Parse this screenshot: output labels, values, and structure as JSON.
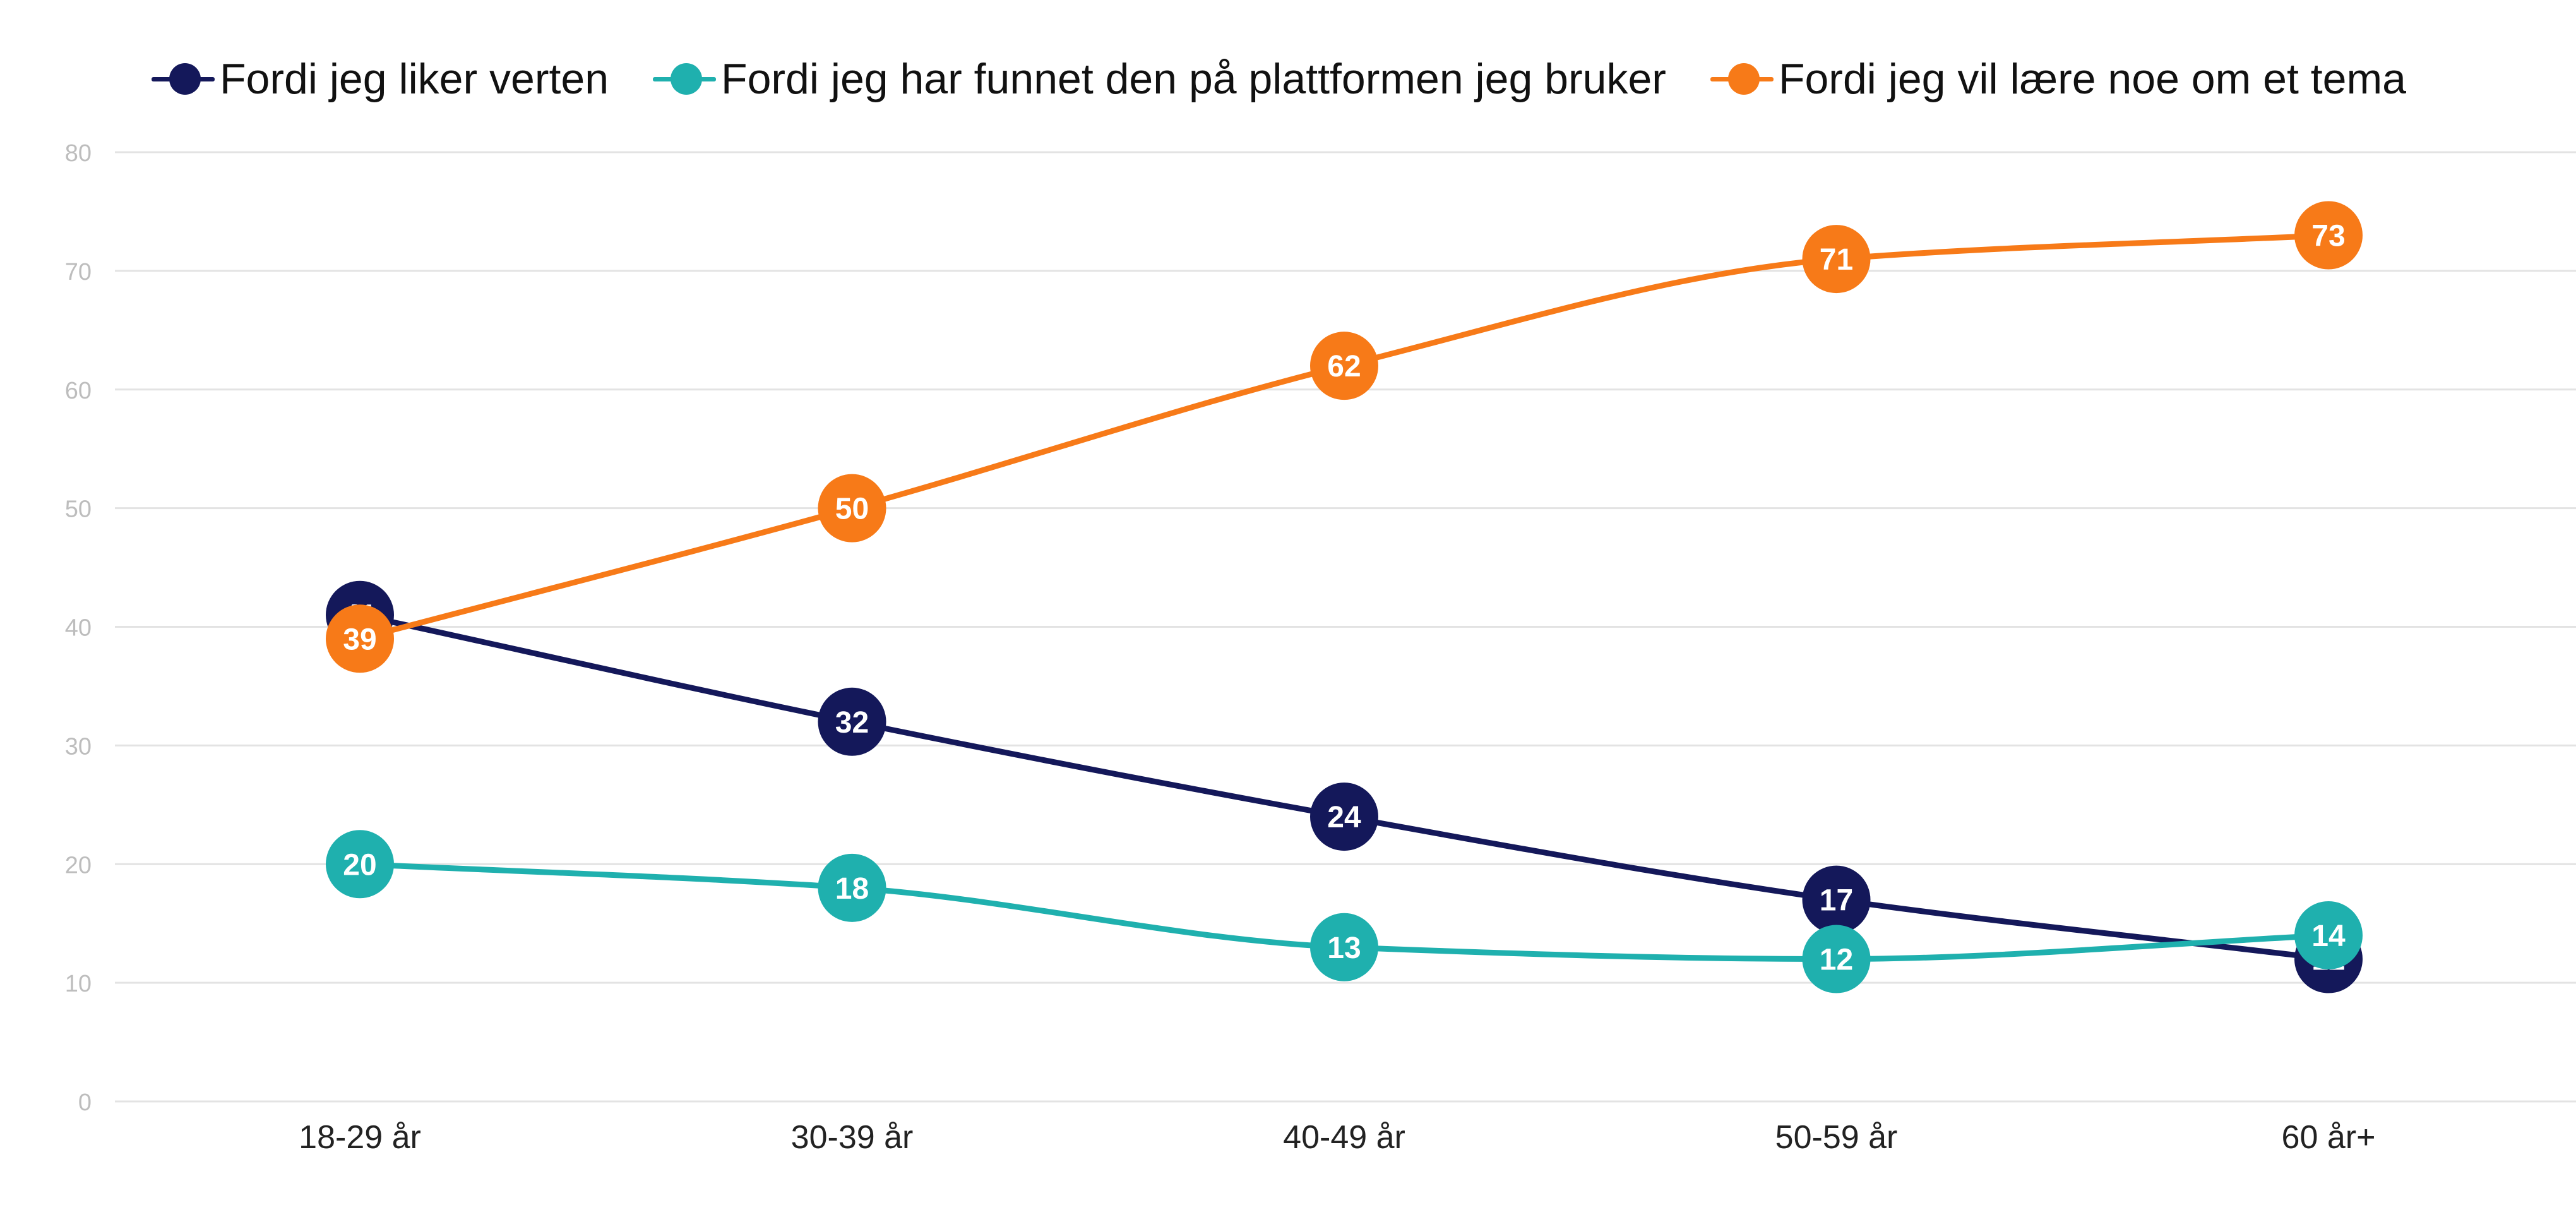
{
  "chart_data": {
    "type": "line",
    "categories": [
      "18-29 år",
      "30-39 år",
      "40-49 år",
      "50-59 år",
      "60 år+"
    ],
    "ylim": [
      0,
      80
    ],
    "yticks": [
      "0",
      "10",
      "20",
      "30",
      "40",
      "50",
      "60",
      "70",
      "80"
    ],
    "grid": true,
    "legend_position": "top",
    "series": [
      {
        "name": "Fordi jeg liker verten",
        "color": "#14185a",
        "values": [
          41,
          32,
          24,
          17,
          12
        ]
      },
      {
        "name": "Fordi jeg har funnet den på plattformen jeg bruker",
        "color": "#1fb0ae",
        "values": [
          20,
          18,
          13,
          12,
          14
        ]
      },
      {
        "name": "Fordi jeg vil lære noe om et tema",
        "color": "#f77a18",
        "values": [
          39,
          50,
          62,
          71,
          73
        ]
      }
    ]
  }
}
